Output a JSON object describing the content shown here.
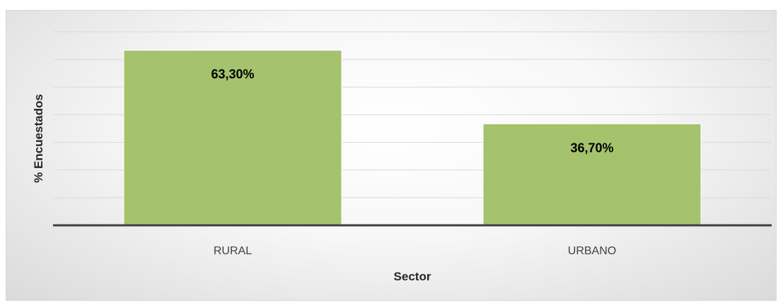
{
  "chart_data": {
    "type": "bar",
    "categories": [
      "RURAL",
      "URBANO"
    ],
    "values": [
      63.3,
      36.7
    ],
    "data_labels": [
      "63,30%",
      "36,70%"
    ],
    "title": "",
    "xlabel": "Sector",
    "ylabel": "% Encuestados",
    "ylim": [
      0,
      70
    ],
    "grid": true,
    "legend": "none",
    "bar_color": "#a5c26d",
    "axis_color": "#404040",
    "grid_color": "#d9d9d9"
  }
}
